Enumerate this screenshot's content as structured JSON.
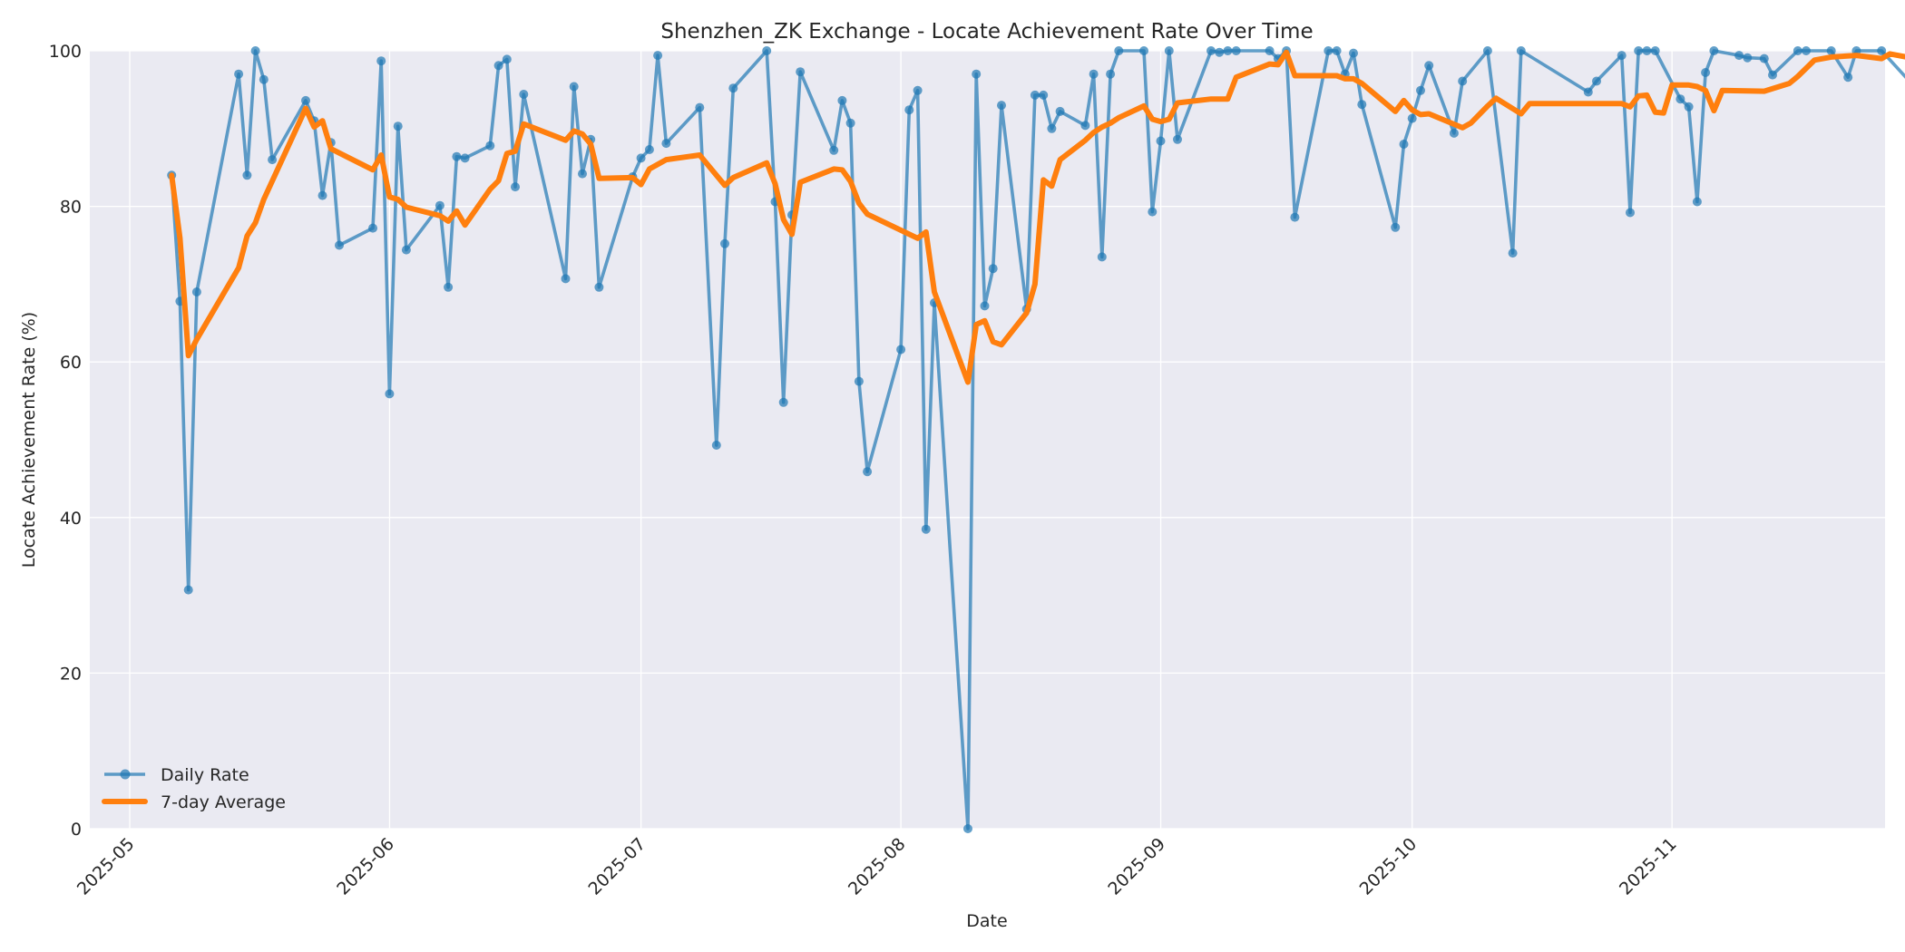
{
  "chart_data": {
    "type": "line",
    "title": "Shenzhen_ZK Exchange - Locate Achievement Rate Over Time",
    "xlabel": "Date",
    "ylabel": "Locate Achievement Rate (%)",
    "ylim": [
      0,
      100
    ],
    "yticks": [
      0,
      20,
      40,
      60,
      80,
      100
    ],
    "xticks": [
      "2025-05",
      "2025-06",
      "2025-07",
      "2025-08",
      "2025-09",
      "2025-10",
      "2025-11"
    ],
    "grid": true,
    "legend_position": "lower left",
    "colors": {
      "daily": "#1f77b4",
      "avg": "#ff7f0e",
      "plot_bg": "#eaeaf2",
      "grid": "#ffffff"
    },
    "series": [
      {
        "name": "Daily Rate",
        "style": "line-with-markers",
        "points": [
          [
            "2025-05-06",
            84.0
          ],
          [
            "2025-05-07",
            67.8
          ],
          [
            "2025-05-08",
            30.7
          ],
          [
            "2025-05-09",
            69.0
          ],
          [
            "2025-05-14",
            97.0
          ],
          [
            "2025-05-15",
            84.0
          ],
          [
            "2025-05-16",
            100.0
          ],
          [
            "2025-05-17",
            96.3
          ],
          [
            "2025-05-18",
            86.0
          ],
          [
            "2025-05-22",
            93.6
          ],
          [
            "2025-05-23",
            91.0
          ],
          [
            "2025-05-24",
            81.4
          ],
          [
            "2025-05-25",
            88.2
          ],
          [
            "2025-05-26",
            75.0
          ],
          [
            "2025-05-30",
            77.2
          ],
          [
            "2025-05-31",
            98.7
          ],
          [
            "2025-06-01",
            55.9
          ],
          [
            "2025-06-02",
            90.3
          ],
          [
            "2025-06-03",
            74.4
          ],
          [
            "2025-06-07",
            80.1
          ],
          [
            "2025-06-08",
            69.6
          ],
          [
            "2025-06-09",
            86.4
          ],
          [
            "2025-06-10",
            86.2
          ],
          [
            "2025-06-13",
            87.8
          ],
          [
            "2025-06-14",
            98.1
          ],
          [
            "2025-06-15",
            98.9
          ],
          [
            "2025-06-16",
            82.5
          ],
          [
            "2025-06-17",
            94.4
          ],
          [
            "2025-06-22",
            70.7
          ],
          [
            "2025-06-23",
            95.4
          ],
          [
            "2025-06-24",
            84.2
          ],
          [
            "2025-06-25",
            88.6
          ],
          [
            "2025-06-26",
            69.6
          ],
          [
            "2025-06-30",
            83.8
          ],
          [
            "2025-07-01",
            86.2
          ],
          [
            "2025-07-02",
            87.3
          ],
          [
            "2025-07-03",
            99.4
          ],
          [
            "2025-07-04",
            88.1
          ],
          [
            "2025-07-08",
            92.7
          ],
          [
            "2025-07-10",
            49.3
          ],
          [
            "2025-07-11",
            75.2
          ],
          [
            "2025-07-12",
            95.2
          ],
          [
            "2025-07-16",
            100.0
          ],
          [
            "2025-07-17",
            80.6
          ],
          [
            "2025-07-18",
            54.8
          ],
          [
            "2025-07-19",
            78.9
          ],
          [
            "2025-07-20",
            97.3
          ],
          [
            "2025-07-24",
            87.2
          ],
          [
            "2025-07-25",
            93.6
          ],
          [
            "2025-07-26",
            90.7
          ],
          [
            "2025-07-27",
            57.5
          ],
          [
            "2025-07-28",
            45.9
          ],
          [
            "2025-08-01",
            61.6
          ],
          [
            "2025-08-02",
            92.4
          ],
          [
            "2025-08-03",
            94.9
          ],
          [
            "2025-08-04",
            38.5
          ],
          [
            "2025-08-05",
            67.6
          ],
          [
            "2025-08-09",
            0.0
          ],
          [
            "2025-08-10",
            97.0
          ],
          [
            "2025-08-11",
            67.2
          ],
          [
            "2025-08-12",
            72.0
          ],
          [
            "2025-08-13",
            93.0
          ],
          [
            "2025-08-16",
            66.8
          ],
          [
            "2025-08-17",
            94.3
          ],
          [
            "2025-08-18",
            94.3
          ],
          [
            "2025-08-19",
            90.0
          ],
          [
            "2025-08-20",
            92.2
          ],
          [
            "2025-08-23",
            90.4
          ],
          [
            "2025-08-24",
            97.0
          ],
          [
            "2025-08-25",
            73.5
          ],
          [
            "2025-08-26",
            97.0
          ],
          [
            "2025-08-27",
            100.0
          ],
          [
            "2025-08-30",
            100.0
          ],
          [
            "2025-08-31",
            79.3
          ],
          [
            "2025-09-01",
            88.4
          ],
          [
            "2025-09-02",
            100.0
          ],
          [
            "2025-09-03",
            88.6
          ],
          [
            "2025-09-07",
            100.0
          ],
          [
            "2025-09-08",
            99.8
          ],
          [
            "2025-09-09",
            100.0
          ],
          [
            "2025-09-10",
            100.0
          ],
          [
            "2025-09-14",
            100.0
          ],
          [
            "2025-09-15",
            99.0
          ],
          [
            "2025-09-16",
            100.0
          ],
          [
            "2025-09-17",
            78.6
          ],
          [
            "2025-09-21",
            100.0
          ],
          [
            "2025-09-22",
            100.0
          ],
          [
            "2025-09-23",
            97.0
          ],
          [
            "2025-09-24",
            99.7
          ],
          [
            "2025-09-25",
            93.1
          ],
          [
            "2025-09-29",
            77.3
          ],
          [
            "2025-09-30",
            88.0
          ],
          [
            "2025-10-01",
            91.3
          ],
          [
            "2025-10-02",
            94.9
          ],
          [
            "2025-10-03",
            98.1
          ],
          [
            "2025-10-06",
            89.4
          ],
          [
            "2025-10-07",
            96.1
          ],
          [
            "2025-10-10",
            100.0
          ],
          [
            "2025-10-13",
            74.0
          ],
          [
            "2025-10-14",
            100.0
          ],
          [
            "2025-10-22",
            94.7
          ],
          [
            "2025-10-23",
            96.1
          ],
          [
            "2025-10-26",
            99.4
          ],
          [
            "2025-10-27",
            79.2
          ],
          [
            "2025-10-28",
            100.0
          ],
          [
            "2025-10-29",
            100.0
          ],
          [
            "2025-10-30",
            100.0
          ],
          [
            "2025-11-02",
            93.8
          ],
          [
            "2025-11-03",
            92.8
          ],
          [
            "2025-11-04",
            80.6
          ],
          [
            "2025-11-05",
            97.2
          ],
          [
            "2025-11-06",
            100.0
          ],
          [
            "2025-11-09",
            99.4
          ],
          [
            "2025-11-10",
            99.1
          ],
          [
            "2025-11-12",
            99.0
          ],
          [
            "2025-11-13",
            96.9
          ],
          [
            "2025-11-16",
            100.0
          ],
          [
            "2025-11-17",
            100.0
          ],
          [
            "2025-11-20",
            100.0
          ],
          [
            "2025-11-22",
            96.6
          ],
          [
            "2025-11-23",
            100.0
          ],
          [
            "2025-11-26",
            100.0
          ],
          [
            "2025-11-30",
            95.3
          ]
        ]
      },
      {
        "name": "7-day Average",
        "style": "line",
        "points": [
          [
            "2025-05-06",
            84.0
          ],
          [
            "2025-05-07",
            75.9
          ],
          [
            "2025-05-08",
            60.8
          ],
          [
            "2025-05-09",
            62.9
          ],
          [
            "2025-05-14",
            72.1
          ],
          [
            "2025-05-15",
            76.2
          ],
          [
            "2025-05-16",
            77.9
          ],
          [
            "2025-05-17",
            80.9
          ],
          [
            "2025-05-22",
            92.6
          ],
          [
            "2025-05-23",
            90.2
          ],
          [
            "2025-05-24",
            91.0
          ],
          [
            "2025-05-25",
            87.4
          ],
          [
            "2025-05-30",
            84.7
          ],
          [
            "2025-05-31",
            86.6
          ],
          [
            "2025-06-01",
            81.2
          ],
          [
            "2025-06-02",
            80.9
          ],
          [
            "2025-06-03",
            79.9
          ],
          [
            "2025-06-07",
            78.8
          ],
          [
            "2025-06-08",
            78.1
          ],
          [
            "2025-06-09",
            79.4
          ],
          [
            "2025-06-10",
            77.6
          ],
          [
            "2025-06-13",
            82.2
          ],
          [
            "2025-06-14",
            83.3
          ],
          [
            "2025-06-15",
            86.8
          ],
          [
            "2025-06-16",
            87.1
          ],
          [
            "2025-06-17",
            90.6
          ],
          [
            "2025-06-22",
            88.5
          ],
          [
            "2025-06-23",
            89.7
          ],
          [
            "2025-06-24",
            89.3
          ],
          [
            "2025-06-25",
            88.0
          ],
          [
            "2025-06-26",
            83.6
          ],
          [
            "2025-06-30",
            83.7
          ],
          [
            "2025-07-01",
            82.8
          ],
          [
            "2025-07-02",
            84.8
          ],
          [
            "2025-07-04",
            86.0
          ],
          [
            "2025-07-08",
            86.6
          ],
          [
            "2025-07-11",
            82.7
          ],
          [
            "2025-07-12",
            83.7
          ],
          [
            "2025-07-16",
            85.6
          ],
          [
            "2025-07-17",
            82.9
          ],
          [
            "2025-07-18",
            78.3
          ],
          [
            "2025-07-19",
            76.4
          ],
          [
            "2025-07-20",
            83.1
          ],
          [
            "2025-07-24",
            84.8
          ],
          [
            "2025-07-25",
            84.7
          ],
          [
            "2025-07-26",
            83.2
          ],
          [
            "2025-07-27",
            80.4
          ],
          [
            "2025-07-28",
            79.0
          ],
          [
            "2025-08-03",
            75.9
          ],
          [
            "2025-08-04",
            76.7
          ],
          [
            "2025-08-05",
            69.0
          ],
          [
            "2025-08-09",
            57.4
          ],
          [
            "2025-08-10",
            64.8
          ],
          [
            "2025-08-11",
            65.3
          ],
          [
            "2025-08-12",
            62.6
          ],
          [
            "2025-08-13",
            62.2
          ],
          [
            "2025-08-16",
            66.3
          ],
          [
            "2025-08-17",
            70.0
          ],
          [
            "2025-08-18",
            83.4
          ],
          [
            "2025-08-19",
            82.6
          ],
          [
            "2025-08-20",
            86.0
          ],
          [
            "2025-08-23",
            88.5
          ],
          [
            "2025-08-24",
            89.5
          ],
          [
            "2025-08-25",
            90.2
          ],
          [
            "2025-08-26",
            90.7
          ],
          [
            "2025-08-27",
            91.4
          ],
          [
            "2025-08-30",
            92.9
          ],
          [
            "2025-08-31",
            91.2
          ],
          [
            "2025-09-01",
            90.9
          ],
          [
            "2025-09-02",
            91.2
          ],
          [
            "2025-09-03",
            93.3
          ],
          [
            "2025-09-07",
            93.8
          ],
          [
            "2025-09-09",
            93.8
          ],
          [
            "2025-09-10",
            96.6
          ],
          [
            "2025-09-14",
            98.3
          ],
          [
            "2025-09-15",
            98.2
          ],
          [
            "2025-09-16",
            99.8
          ],
          [
            "2025-09-17",
            96.8
          ],
          [
            "2025-09-21",
            96.8
          ],
          [
            "2025-09-22",
            96.8
          ],
          [
            "2025-09-23",
            96.4
          ],
          [
            "2025-09-24",
            96.4
          ],
          [
            "2025-09-25",
            95.8
          ],
          [
            "2025-09-29",
            92.2
          ],
          [
            "2025-09-30",
            93.6
          ],
          [
            "2025-10-01",
            92.4
          ],
          [
            "2025-10-02",
            91.8
          ],
          [
            "2025-10-03",
            91.9
          ],
          [
            "2025-10-07",
            90.1
          ],
          [
            "2025-10-08",
            90.7
          ],
          [
            "2025-10-10",
            92.9
          ],
          [
            "2025-10-11",
            93.9
          ],
          [
            "2025-10-14",
            91.9
          ],
          [
            "2025-10-15",
            93.2
          ],
          [
            "2025-10-22",
            93.2
          ],
          [
            "2025-10-26",
            93.2
          ],
          [
            "2025-10-27",
            92.8
          ],
          [
            "2025-10-28",
            94.2
          ],
          [
            "2025-10-29",
            94.3
          ],
          [
            "2025-10-30",
            92.1
          ],
          [
            "2025-10-31",
            92.0
          ],
          [
            "2025-11-01",
            95.6
          ],
          [
            "2025-11-03",
            95.6
          ],
          [
            "2025-11-04",
            95.4
          ],
          [
            "2025-11-05",
            94.9
          ],
          [
            "2025-11-06",
            92.3
          ],
          [
            "2025-11-07",
            94.9
          ],
          [
            "2025-11-12",
            94.8
          ],
          [
            "2025-11-15",
            95.8
          ],
          [
            "2025-11-16",
            96.7
          ],
          [
            "2025-11-18",
            98.8
          ],
          [
            "2025-11-20",
            99.2
          ],
          [
            "2025-11-23",
            99.4
          ],
          [
            "2025-11-26",
            99.0
          ],
          [
            "2025-11-27",
            99.6
          ],
          [
            "2025-11-29",
            99.2
          ],
          [
            "2025-11-30",
            98.9
          ]
        ]
      }
    ]
  }
}
